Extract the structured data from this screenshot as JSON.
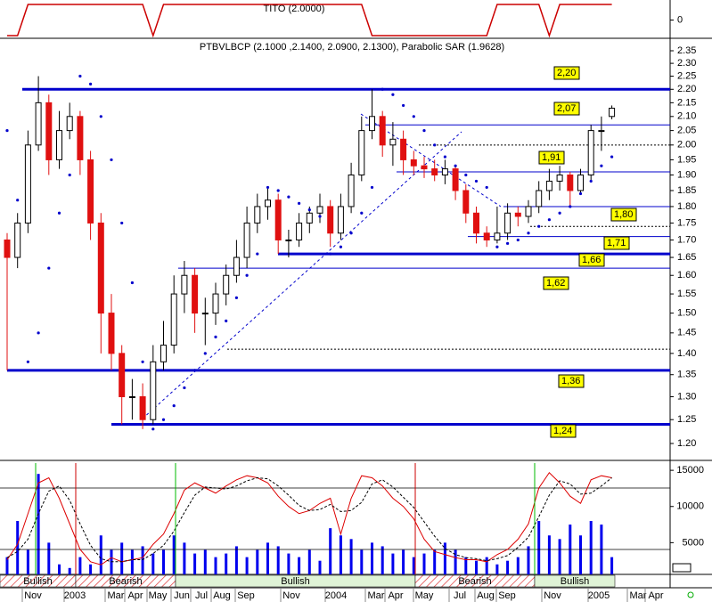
{
  "chart_data": {
    "type": "candlestick",
    "title": "PTBVLBCP (2.1000 ,2.1400, 2.0900, 2.1300), Parabolic SAR (1.9628)",
    "log": true,
    "ylim": [
      1.2,
      2.35
    ],
    "yticks": [
      2.35,
      {
        "value": 2.3,
        "label": "2.30"
      },
      2.25,
      {
        "value": 2.2,
        "label": "2.20"
      },
      2.15,
      {
        "value": 2.1,
        "label": "2.10"
      },
      2.05,
      {
        "value": 2.0,
        "label": "2.00"
      },
      1.95,
      {
        "value": 1.9,
        "label": "1.90"
      },
      1.85,
      {
        "value": 1.8,
        "label": "1.80"
      },
      1.75,
      {
        "value": 1.7,
        "label": "1.70"
      },
      1.65,
      {
        "value": 1.6,
        "label": "1.60"
      },
      1.55,
      {
        "value": 1.5,
        "label": "1.50"
      },
      1.45,
      {
        "value": 1.4,
        "label": "1.40"
      },
      1.35,
      {
        "value": 1.3,
        "label": "1.30"
      },
      1.25,
      {
        "value": 1.2,
        "label": "1.20"
      }
    ],
    "up_color": "#ffffff",
    "down_color": "#e01010",
    "sar_color": "#0000cc",
    "open": [
      1.7,
      1.65,
      1.75,
      2.0,
      2.15,
      1.95,
      2.05,
      2.1,
      1.95,
      1.75,
      1.5,
      1.4,
      1.3,
      1.3,
      1.25,
      1.38,
      1.42,
      1.55,
      1.6,
      1.5,
      1.5,
      1.55,
      1.6,
      1.65,
      1.75,
      1.8,
      1.82,
      1.7,
      1.7,
      1.75,
      1.78,
      1.8,
      1.72,
      1.8,
      1.9,
      2.05,
      2.1,
      2.0,
      2.02,
      1.95,
      1.93,
      1.92,
      1.9,
      1.92,
      1.85,
      1.78,
      1.72,
      1.7,
      1.72,
      1.78,
      1.77,
      1.8,
      1.85,
      1.88,
      1.9,
      1.85,
      1.9,
      2.05,
      2.1
    ],
    "high": [
      1.72,
      1.78,
      2.05,
      2.25,
      2.18,
      2.12,
      2.15,
      2.12,
      1.98,
      1.78,
      1.55,
      1.42,
      1.34,
      1.33,
      1.42,
      1.48,
      1.6,
      1.64,
      1.62,
      1.54,
      1.58,
      1.63,
      1.7,
      1.8,
      1.84,
      1.86,
      1.84,
      1.73,
      1.78,
      1.8,
      1.84,
      1.82,
      1.84,
      1.94,
      2.1,
      2.2,
      2.12,
      2.08,
      2.05,
      1.98,
      1.96,
      1.95,
      1.95,
      1.93,
      1.87,
      1.8,
      1.74,
      1.8,
      1.81,
      1.8,
      1.82,
      1.88,
      1.92,
      1.93,
      1.91,
      1.92,
      2.07,
      2.1,
      2.14
    ],
    "low": [
      1.36,
      1.62,
      1.72,
      1.98,
      1.9,
      1.92,
      2.02,
      1.9,
      1.7,
      1.4,
      1.36,
      1.24,
      1.25,
      1.23,
      1.24,
      1.36,
      1.4,
      1.5,
      1.45,
      1.42,
      1.47,
      1.52,
      1.58,
      1.62,
      1.72,
      1.76,
      1.66,
      1.65,
      1.68,
      1.72,
      1.75,
      1.68,
      1.7,
      1.78,
      1.88,
      2.02,
      1.96,
      1.93,
      1.9,
      1.9,
      1.89,
      1.88,
      1.87,
      1.82,
      1.75,
      1.69,
      1.68,
      1.69,
      1.7,
      1.74,
      1.75,
      1.78,
      1.82,
      1.85,
      1.8,
      1.84,
      1.88,
      1.98,
      2.09
    ],
    "close": [
      1.65,
      1.75,
      2.0,
      2.15,
      1.95,
      2.05,
      2.1,
      1.95,
      1.75,
      1.5,
      1.4,
      1.3,
      1.3,
      1.25,
      1.38,
      1.42,
      1.55,
      1.6,
      1.5,
      1.5,
      1.55,
      1.6,
      1.65,
      1.75,
      1.8,
      1.82,
      1.7,
      1.7,
      1.75,
      1.78,
      1.8,
      1.72,
      1.8,
      1.9,
      2.05,
      2.1,
      2.0,
      2.02,
      1.95,
      1.93,
      1.92,
      1.9,
      1.92,
      1.85,
      1.78,
      1.72,
      1.7,
      1.72,
      1.78,
      1.77,
      1.8,
      1.85,
      1.88,
      1.9,
      1.85,
      1.9,
      2.05,
      2.05,
      2.13
    ],
    "sar": [
      2.05,
      1.82,
      1.38,
      1.45,
      1.62,
      1.78,
      1.9,
      2.25,
      2.22,
      2.1,
      1.95,
      1.75,
      1.58,
      1.38,
      1.23,
      1.25,
      1.28,
      1.32,
      1.36,
      1.4,
      1.44,
      1.48,
      1.54,
      1.6,
      1.66,
      1.86,
      1.85,
      1.83,
      1.81,
      1.79,
      1.77,
      1.66,
      1.68,
      1.72,
      1.78,
      1.86,
      2.2,
      2.18,
      2.14,
      2.1,
      2.05,
      2.0,
      1.96,
      1.93,
      1.9,
      1.88,
      1.86,
      1.68,
      1.69,
      1.7,
      1.72,
      1.74,
      1.76,
      1.78,
      1.8,
      1.84,
      1.88,
      1.93,
      1.96
    ],
    "levels": [
      {
        "value": 2.2,
        "label": "2,20",
        "style": "thick"
      },
      {
        "value": 2.07,
        "label": "2,07",
        "style": "thin"
      },
      {
        "value": 2.0,
        "style": "dashed"
      },
      {
        "value": 1.91,
        "label": "1,91",
        "style": "thin"
      },
      {
        "value": 1.8,
        "label": "1,80",
        "style": "thin"
      },
      {
        "value": 1.74,
        "style": "dashed"
      },
      {
        "value": 1.71,
        "label": "1,71",
        "style": "thin"
      },
      {
        "value": 1.66,
        "label": "1,66",
        "style": "thick"
      },
      {
        "value": 1.62,
        "label": "1,62",
        "style": "thin"
      },
      {
        "value": 1.41,
        "style": "dashed"
      },
      {
        "value": 1.36,
        "label": "1,36",
        "style": "thick"
      },
      {
        "value": 1.24,
        "label": "1,24",
        "style": "thick"
      }
    ],
    "level_color": "#0000cc",
    "tito": {
      "title": "TITO (2.0000)",
      "ylim": [
        -1,
        1
      ],
      "yticks": [
        0
      ],
      "color": "#cc0000",
      "values": [
        -1,
        -1,
        1,
        1,
        1,
        1,
        1,
        1,
        1,
        1,
        1,
        1,
        1,
        1,
        -1,
        1,
        1,
        1,
        1,
        1,
        1,
        1,
        1,
        1,
        1,
        1,
        1,
        1,
        1,
        1,
        1,
        1,
        1,
        1,
        1,
        -1,
        -1,
        -1,
        -1,
        -1,
        -1,
        -1,
        -1,
        -1,
        -1,
        -1,
        -1,
        1,
        1,
        1,
        1,
        1,
        -1,
        1,
        1,
        1,
        1,
        1,
        1
      ]
    },
    "volume": {
      "ylim": [
        0,
        16000
      ],
      "yticks": [
        5000,
        10000,
        15000
      ],
      "color": "#0000ee",
      "values": [
        3000,
        8000,
        4000,
        14500,
        5000,
        2000,
        1500,
        3000,
        2000,
        6000,
        4000,
        5000,
        4000,
        4500,
        3500,
        4000,
        6000,
        5000,
        3500,
        4000,
        3000,
        3500,
        4500,
        3000,
        4000,
        5000,
        4500,
        3500,
        3000,
        4000,
        2500,
        7000,
        6000,
        5500,
        4000,
        5000,
        4500,
        3500,
        4000,
        3000,
        3500,
        4000,
        5000,
        4000,
        3000,
        2500,
        3000,
        2000,
        2500,
        3000,
        4500,
        8000,
        6000,
        5500,
        7500,
        6000,
        8000,
        7500,
        3000
      ]
    },
    "stochastic": {
      "ylim": [
        0,
        100
      ],
      "levels": [
        20,
        80
      ],
      "k_color": "#dd0000",
      "d_color": "#000000",
      "k": [
        10,
        25,
        55,
        85,
        90,
        70,
        45,
        20,
        8,
        5,
        12,
        8,
        10,
        12,
        25,
        35,
        55,
        78,
        85,
        80,
        75,
        82,
        88,
        92,
        90,
        85,
        72,
        62,
        55,
        58,
        65,
        70,
        35,
        70,
        92,
        90,
        82,
        70,
        62,
        50,
        30,
        18,
        15,
        12,
        10,
        10,
        8,
        15,
        20,
        30,
        45,
        80,
        95,
        85,
        72,
        65,
        88,
        92,
        90
      ],
      "d": [
        12,
        18,
        30,
        55,
        77,
        82,
        68,
        45,
        24,
        11,
        8,
        8,
        10,
        10,
        16,
        24,
        38,
        56,
        73,
        81,
        80,
        79,
        82,
        87,
        90,
        89,
        82,
        73,
        63,
        58,
        59,
        64,
        57,
        58,
        66,
        84,
        88,
        81,
        71,
        61,
        47,
        33,
        21,
        15,
        12,
        11,
        9,
        11,
        14,
        22,
        32,
        52,
        73,
        87,
        84,
        74,
        75,
        82,
        90
      ]
    },
    "signals": [
      {
        "label": "Bullish",
        "kind": "bullish"
      },
      {
        "label": "Bearish",
        "kind": "bearish"
      },
      {
        "label": "Bullish",
        "kind": "bullish"
      },
      {
        "label": "Bearish",
        "kind": "bearish"
      },
      {
        "label": "Bullish",
        "kind": "bullish"
      }
    ],
    "dates": [
      "Nov",
      "2003",
      "Mar",
      "Apr",
      "May",
      "Jun",
      "Jul",
      "Aug",
      "Sep",
      "Nov",
      "2004",
      "Mar",
      "Apr",
      "May",
      "Jul",
      "Aug",
      "Sep",
      "Nov",
      "2005",
      "Mar",
      "Apr"
    ]
  }
}
